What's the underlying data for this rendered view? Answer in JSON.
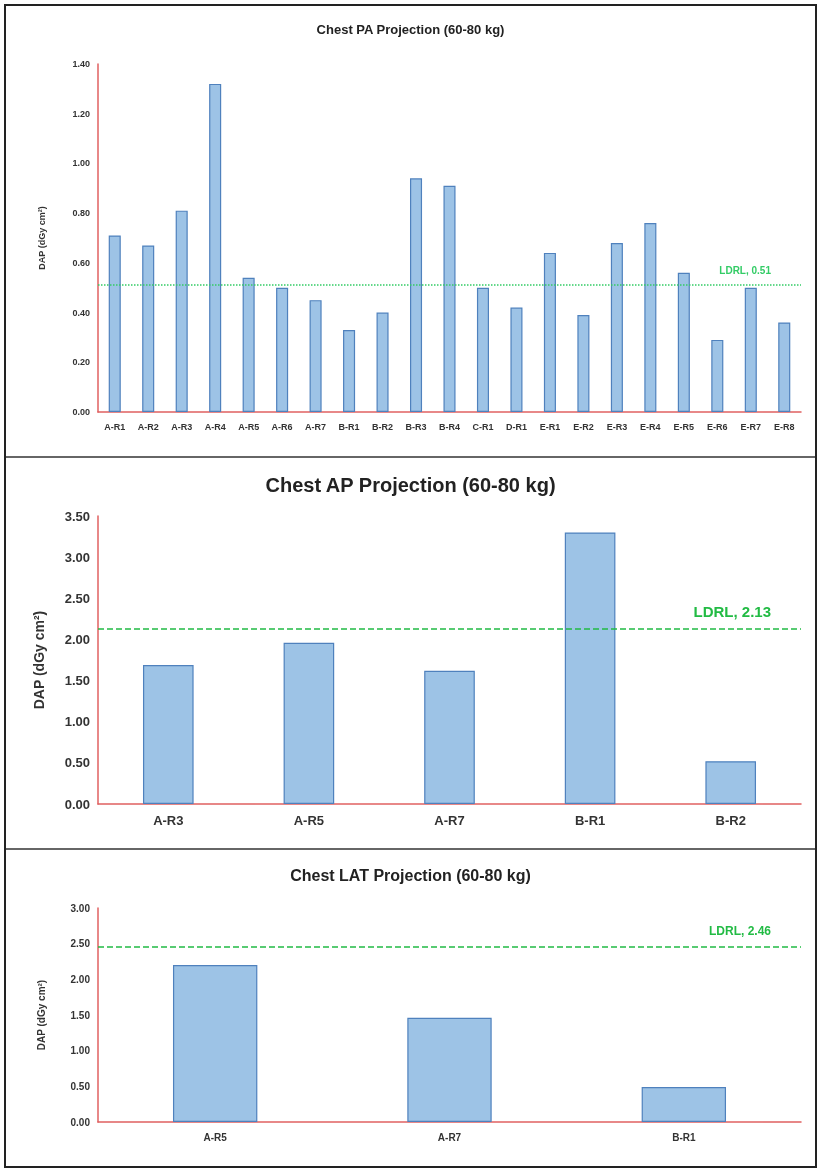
{
  "chart_data": [
    {
      "type": "bar",
      "title": "Chest PA Projection (60-80 kg)",
      "ylabel": "DAP (dGy cm²)",
      "categories": [
        "A-R1",
        "A-R2",
        "A-R3",
        "A-R4",
        "A-R5",
        "A-R6",
        "A-R7",
        "B-R1",
        "B-R2",
        "B-R3",
        "B-R4",
        "C-R1",
        "D-R1",
        "E-R1",
        "E-R2",
        "E-R3",
        "E-R4",
        "E-R5",
        "E-R6",
        "E-R7",
        "E-R8"
      ],
      "values": [
        0.71,
        0.67,
        0.81,
        1.32,
        0.54,
        0.5,
        0.45,
        0.33,
        0.4,
        0.94,
        0.91,
        0.5,
        0.42,
        0.64,
        0.39,
        0.68,
        0.76,
        0.56,
        0.29,
        0.5,
        0.36
      ],
      "color": "#9dc3e6",
      "ylim": [
        0,
        1.4
      ],
      "yticks": [
        {
          "value": 0,
          "label": "0.00"
        },
        {
          "value": 0.2,
          "label": "0.20"
        },
        {
          "value": 0.4,
          "label": "0.40"
        },
        {
          "value": 0.6,
          "label": "0.60"
        },
        {
          "value": 0.8,
          "label": "0.80"
        },
        {
          "value": 1,
          "label": "1.00"
        },
        {
          "value": 1.2,
          "label": "1.20"
        },
        {
          "value": 1.4,
          "label": "1.40"
        }
      ],
      "ref_lines": [
        {
          "axis": "y",
          "value": 0.51,
          "label": "LDRL, 0.51",
          "color": "#33cc66",
          "line_style": "dotted"
        }
      ],
      "grid": false
    },
    {
      "type": "bar",
      "title": "Chest AP Projection (60-80 kg)",
      "ylabel": "DAP (dGy cm²)",
      "categories": [
        "A-R3",
        "A-R5",
        "A-R7",
        "B-R1",
        "B-R2"
      ],
      "values": [
        1.69,
        1.96,
        1.62,
        3.3,
        0.52
      ],
      "color": "#9dc3e6",
      "ylim": [
        0,
        3.5
      ],
      "yticks": [
        {
          "value": 0,
          "label": "0.00"
        },
        {
          "value": 0.5,
          "label": "0.50"
        },
        {
          "value": 1,
          "label": "1.00"
        },
        {
          "value": 1.5,
          "label": "1.50"
        },
        {
          "value": 2,
          "label": "2.00"
        },
        {
          "value": 2.5,
          "label": "2.50"
        },
        {
          "value": 3,
          "label": "3.00"
        },
        {
          "value": 3.5,
          "label": "3.50"
        }
      ],
      "ref_lines": [
        {
          "axis": "y",
          "value": 2.13,
          "label": "LDRL, 2.13",
          "color": "#22bb44",
          "line_style": "dashed"
        }
      ],
      "grid": false
    },
    {
      "type": "bar",
      "title": "Chest LAT Projection (60-80 kg)",
      "ylabel": "DAP (dGy cm²)",
      "categories": [
        "A-R5",
        "A-R7",
        "B-R1"
      ],
      "values": [
        2.2,
        1.46,
        0.49
      ],
      "color": "#9dc3e6",
      "ylim": [
        0,
        3
      ],
      "yticks": [
        {
          "value": 0,
          "label": "0.00"
        },
        {
          "value": 0.5,
          "label": "0.50"
        },
        {
          "value": 1,
          "label": "1.00"
        },
        {
          "value": 1.5,
          "label": "1.50"
        },
        {
          "value": 2,
          "label": "2.00"
        },
        {
          "value": 2.5,
          "label": "2.50"
        },
        {
          "value": 3,
          "label": "3.00"
        }
      ],
      "ref_lines": [
        {
          "axis": "y",
          "value": 2.46,
          "label": "LDRL, 2.46",
          "color": "#22bb44",
          "line_style": "dashed"
        }
      ],
      "grid": false
    }
  ]
}
